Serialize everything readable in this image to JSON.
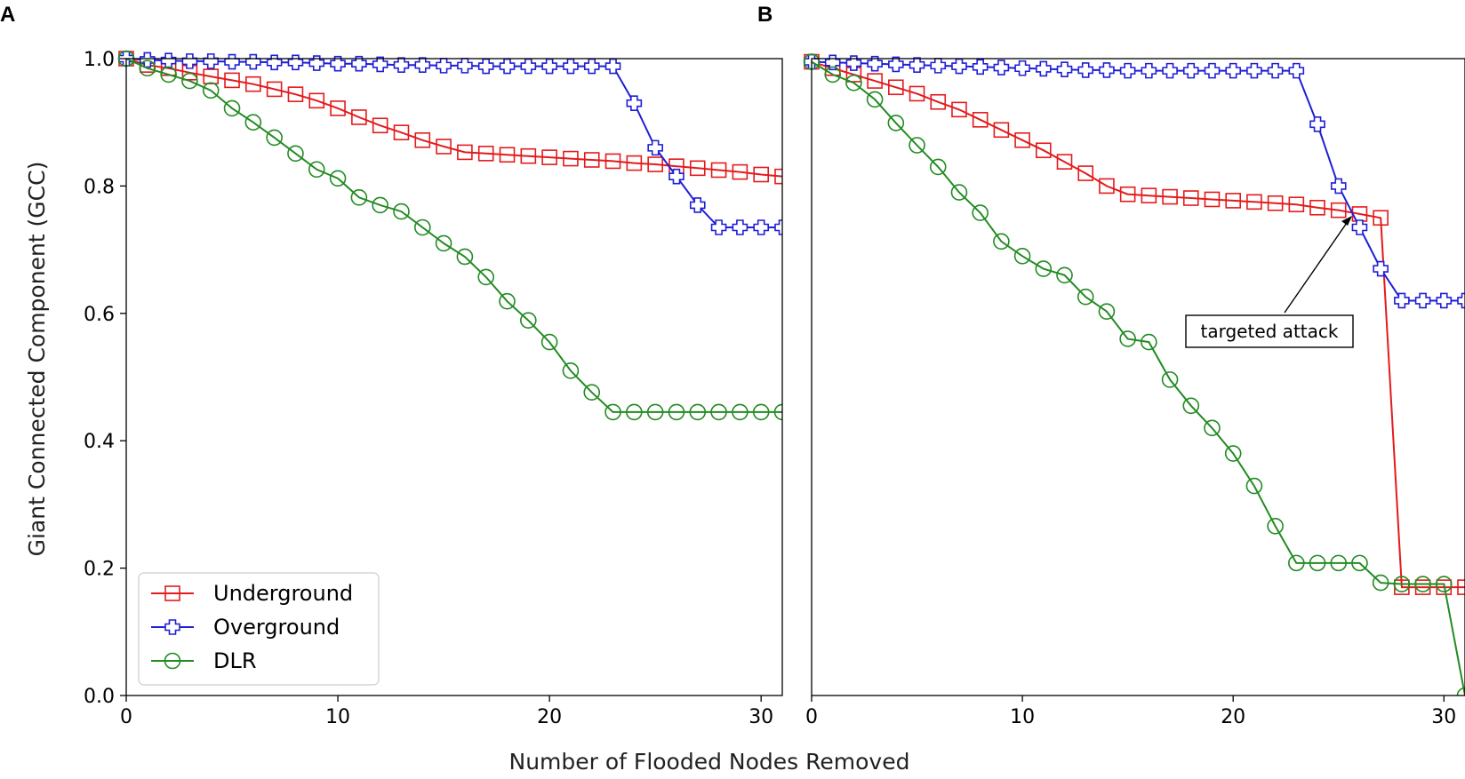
{
  "figure": {
    "xlabel": "Number of Flooded Nodes Removed"
  },
  "chart_data": [
    {
      "panel_label": "A",
      "type": "line",
      "xlabel": "Number of Flooded Nodes Removed",
      "ylabel": "Giant Connected Component (GCC)",
      "xlim": [
        0,
        31
      ],
      "ylim": [
        0,
        1.0
      ],
      "xticks": [
        "0",
        "10",
        "20",
        "30"
      ],
      "yticks": [
        "0.0",
        "0.2",
        "0.4",
        "0.6",
        "0.8",
        "1.0"
      ],
      "grid": false,
      "legend": {
        "placement": "lower-left",
        "entries": [
          "Underground",
          "Overground",
          "DLR"
        ]
      },
      "series": [
        {
          "name": "Underground",
          "color": "#e41a1c",
          "marker": "square",
          "x": [
            0,
            1,
            2,
            3,
            4,
            5,
            6,
            7,
            8,
            9,
            10,
            11,
            12,
            13,
            14,
            15,
            16,
            17,
            18,
            19,
            20,
            21,
            22,
            23,
            24,
            25,
            26,
            27,
            28,
            29,
            30,
            31
          ],
          "y": [
            1.0,
            0.99,
            0.985,
            0.978,
            0.972,
            0.966,
            0.96,
            0.952,
            0.944,
            0.934,
            0.922,
            0.908,
            0.895,
            0.884,
            0.872,
            0.862,
            0.853,
            0.851,
            0.849,
            0.847,
            0.845,
            0.843,
            0.841,
            0.839,
            0.836,
            0.834,
            0.831,
            0.828,
            0.825,
            0.822,
            0.818,
            0.815
          ]
        },
        {
          "name": "Overground",
          "color": "#1f1fd6",
          "marker": "plus",
          "x": [
            0,
            1,
            2,
            3,
            4,
            5,
            6,
            7,
            8,
            9,
            10,
            11,
            12,
            13,
            14,
            15,
            16,
            17,
            18,
            19,
            20,
            21,
            22,
            23,
            24,
            25,
            26,
            27,
            28,
            29,
            30,
            31
          ],
          "y": [
            1.0,
            0.998,
            0.997,
            0.996,
            0.996,
            0.995,
            0.995,
            0.994,
            0.994,
            0.993,
            0.992,
            0.992,
            0.991,
            0.99,
            0.99,
            0.989,
            0.989,
            0.988,
            0.988,
            0.988,
            0.988,
            0.988,
            0.988,
            0.988,
            0.93,
            0.86,
            0.815,
            0.77,
            0.735,
            0.735,
            0.735,
            0.735
          ]
        },
        {
          "name": "DLR",
          "color": "#228b22",
          "marker": "circle",
          "x": [
            0,
            1,
            2,
            3,
            4,
            5,
            6,
            7,
            8,
            9,
            10,
            11,
            12,
            13,
            14,
            15,
            16,
            17,
            18,
            19,
            20,
            21,
            22,
            23,
            24,
            25,
            26,
            27,
            28,
            29,
            30,
            31
          ],
          "y": [
            1.0,
            0.985,
            0.975,
            0.965,
            0.95,
            0.922,
            0.9,
            0.876,
            0.851,
            0.826,
            0.812,
            0.782,
            0.77,
            0.76,
            0.735,
            0.71,
            0.689,
            0.657,
            0.619,
            0.589,
            0.555,
            0.51,
            0.476,
            0.445,
            0.445,
            0.445,
            0.445,
            0.445,
            0.445,
            0.445,
            0.445,
            0.445
          ]
        }
      ]
    },
    {
      "panel_label": "B",
      "type": "line",
      "xlabel": "Number of Flooded Nodes Removed",
      "ylabel": "",
      "xlim": [
        0,
        31
      ],
      "ylim": [
        0,
        1.0
      ],
      "xticks": [
        "0",
        "10",
        "20",
        "30"
      ],
      "yticks": [],
      "grid": false,
      "annotation": {
        "text": "targeted attack",
        "x": 26,
        "y": 0.752
      },
      "series": [
        {
          "name": "Underground",
          "color": "#e41a1c",
          "marker": "square",
          "x": [
            0,
            1,
            2,
            3,
            4,
            5,
            6,
            7,
            8,
            9,
            10,
            11,
            12,
            13,
            14,
            15,
            16,
            17,
            18,
            19,
            20,
            21,
            22,
            23,
            24,
            25,
            26,
            27,
            28,
            29,
            30,
            31
          ],
          "y": [
            0.995,
            0.985,
            0.975,
            0.965,
            0.955,
            0.945,
            0.932,
            0.92,
            0.904,
            0.888,
            0.872,
            0.856,
            0.838,
            0.82,
            0.8,
            0.787,
            0.785,
            0.783,
            0.781,
            0.779,
            0.777,
            0.775,
            0.773,
            0.771,
            0.766,
            0.762,
            0.756,
            0.75,
            0.17,
            0.17,
            0.17,
            0.17
          ]
        },
        {
          "name": "Overground",
          "color": "#1f1fd6",
          "marker": "plus",
          "x": [
            0,
            1,
            2,
            3,
            4,
            5,
            6,
            7,
            8,
            9,
            10,
            11,
            12,
            13,
            14,
            15,
            16,
            17,
            18,
            19,
            20,
            21,
            22,
            23,
            24,
            25,
            26,
            27,
            28,
            29,
            30,
            31
          ],
          "y": [
            0.995,
            0.994,
            0.993,
            0.992,
            0.991,
            0.99,
            0.989,
            0.988,
            0.987,
            0.986,
            0.985,
            0.984,
            0.983,
            0.982,
            0.982,
            0.981,
            0.981,
            0.981,
            0.981,
            0.981,
            0.981,
            0.981,
            0.981,
            0.981,
            0.897,
            0.8,
            0.735,
            0.67,
            0.62,
            0.62,
            0.62,
            0.62
          ]
        },
        {
          "name": "DLR",
          "color": "#228b22",
          "marker": "circle",
          "x": [
            0,
            1,
            2,
            3,
            4,
            5,
            6,
            7,
            8,
            9,
            10,
            11,
            12,
            13,
            14,
            15,
            16,
            17,
            18,
            19,
            20,
            21,
            22,
            23,
            24,
            25,
            26,
            27,
            28,
            29,
            30,
            31
          ],
          "y": [
            0.995,
            0.975,
            0.962,
            0.936,
            0.899,
            0.864,
            0.83,
            0.79,
            0.758,
            0.713,
            0.69,
            0.67,
            0.66,
            0.626,
            0.603,
            0.56,
            0.555,
            0.496,
            0.455,
            0.42,
            0.38,
            0.329,
            0.266,
            0.208,
            0.208,
            0.208,
            0.208,
            0.177,
            0.175,
            0.175,
            0.175,
            0.0
          ]
        }
      ]
    }
  ]
}
